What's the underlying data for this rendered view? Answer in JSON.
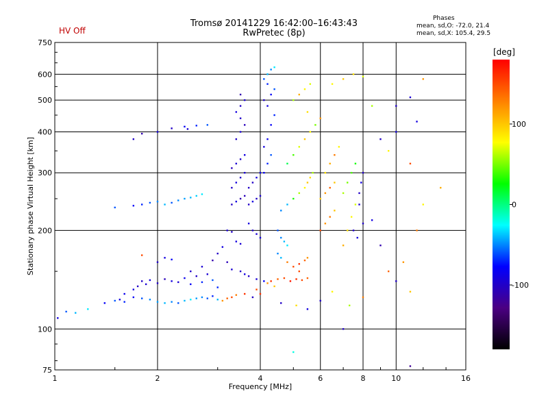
{
  "status_text": "HV Off",
  "title": "Tromsø 20141229 16:42:00–16:43:43",
  "subtitle": "RwPretec (8p)",
  "phase_stats": {
    "heading": "Phases",
    "o_line": "mean, sd,O: -72.0, 21.4",
    "x_line": "mean, sd,X: 105.4, 29.5"
  },
  "colorbar": {
    "label": "[deg]",
    "ticks": [
      {
        "value": 100,
        "label": "100"
      },
      {
        "value": 0,
        "label": "0"
      },
      {
        "value": -100,
        "label": "-100"
      }
    ],
    "range": [
      -180,
      180
    ],
    "colors": [
      "#000000",
      "#4b0082",
      "#0000ff",
      "#00ffff",
      "#00ff00",
      "#ffff00",
      "#ff8000",
      "#ff0000"
    ]
  },
  "chart_data": {
    "type": "scatter",
    "title": "Tromsø 20141229 16:42:00–16:43:43",
    "subtitle": "RwPretec (8p)",
    "xlabel": "Frequency [MHz]",
    "ylabel": "Stationary phase Virtual Height [km]",
    "xscale": "log",
    "yscale": "log",
    "xlim": [
      1,
      16
    ],
    "ylim": [
      75,
      750
    ],
    "grid": true,
    "xticks": [
      {
        "value": 1,
        "label": "1"
      },
      {
        "value": 2,
        "label": "2"
      },
      {
        "value": 4,
        "label": "4"
      },
      {
        "value": 6,
        "label": "6"
      },
      {
        "value": 8,
        "label": "8"
      },
      {
        "value": 10,
        "label": "10"
      },
      {
        "value": 16,
        "label": "16"
      }
    ],
    "yticks": [
      {
        "value": 75,
        "label": "75"
      },
      {
        "value": 100,
        "label": "100"
      },
      {
        "value": 200,
        "label": "200"
      },
      {
        "value": 300,
        "label": "300"
      },
      {
        "value": 400,
        "label": "400"
      },
      {
        "value": 500,
        "label": "500"
      },
      {
        "value": 600,
        "label": "600"
      },
      {
        "value": 750,
        "label": "750"
      }
    ],
    "color_variable": "phase [deg]",
    "points": [
      [
        1.02,
        108,
        -90
      ],
      [
        1.08,
        113,
        -60
      ],
      [
        1.15,
        112,
        -40
      ],
      [
        1.25,
        115,
        -30
      ],
      [
        1.4,
        120,
        -80
      ],
      [
        1.5,
        122,
        -60
      ],
      [
        1.55,
        123,
        -90
      ],
      [
        1.6,
        121,
        -70
      ],
      [
        1.6,
        128,
        -85
      ],
      [
        1.7,
        125,
        -80
      ],
      [
        1.8,
        124,
        -60
      ],
      [
        1.9,
        123,
        -50
      ],
      [
        2.0,
        121,
        -45
      ],
      [
        2.1,
        120,
        -40
      ],
      [
        2.2,
        121,
        -50
      ],
      [
        2.3,
        120,
        -60
      ],
      [
        2.4,
        122,
        -40
      ],
      [
        2.5,
        123,
        -30
      ],
      [
        2.6,
        124,
        -45
      ],
      [
        2.7,
        125,
        -50
      ],
      [
        2.8,
        124,
        -60
      ],
      [
        2.9,
        126,
        -70
      ],
      [
        3.0,
        123,
        -40
      ],
      [
        3.1,
        122,
        120
      ],
      [
        3.2,
        124,
        140
      ],
      [
        3.3,
        125,
        150
      ],
      [
        3.4,
        127,
        130
      ],
      [
        3.6,
        128,
        160
      ],
      [
        1.7,
        132,
        -90
      ],
      [
        1.75,
        135,
        -100
      ],
      [
        1.85,
        137,
        -95
      ],
      [
        2.0,
        138,
        -100
      ],
      [
        2.2,
        140,
        -90
      ],
      [
        2.4,
        143,
        -85
      ],
      [
        2.6,
        145,
        -100
      ],
      [
        2.8,
        147,
        -95
      ],
      [
        1.8,
        140,
        -100
      ],
      [
        1.9,
        141,
        -90
      ],
      [
        2.1,
        142,
        -105
      ],
      [
        2.3,
        139,
        -95
      ],
      [
        2.5,
        137,
        -80
      ],
      [
        2.7,
        139,
        -70
      ],
      [
        2.9,
        141,
        -60
      ],
      [
        3.0,
        134,
        -70
      ],
      [
        2.5,
        150,
        -100
      ],
      [
        2.7,
        155,
        -95
      ],
      [
        2.9,
        162,
        -110
      ],
      [
        3.0,
        170,
        -100
      ],
      [
        3.1,
        178,
        -90
      ],
      [
        3.2,
        160,
        -105
      ],
      [
        3.3,
        152,
        -95
      ],
      [
        3.5,
        150,
        -100
      ],
      [
        3.6,
        147,
        -90
      ],
      [
        3.7,
        145,
        -100
      ],
      [
        3.9,
        142,
        -95
      ],
      [
        4.1,
        140,
        -80
      ],
      [
        2.0,
        160,
        -100
      ],
      [
        2.1,
        165,
        -90
      ],
      [
        2.2,
        163,
        -80
      ],
      [
        1.8,
        168,
        150
      ],
      [
        1.5,
        235,
        -60
      ],
      [
        1.7,
        238,
        -80
      ],
      [
        1.8,
        240,
        -70
      ],
      [
        1.9,
        243,
        -60
      ],
      [
        2.0,
        245,
        -50
      ],
      [
        2.1,
        240,
        -40
      ],
      [
        2.2,
        243,
        -60
      ],
      [
        2.3,
        247,
        -50
      ],
      [
        2.4,
        250,
        -45
      ],
      [
        2.5,
        252,
        -40
      ],
      [
        2.6,
        255,
        -35
      ],
      [
        2.7,
        258,
        -30
      ],
      [
        2.0,
        400,
        -90
      ],
      [
        2.2,
        410,
        -100
      ],
      [
        2.4,
        415,
        -80
      ],
      [
        2.6,
        418,
        -70
      ],
      [
        2.8,
        420,
        -60
      ],
      [
        1.7,
        380,
        -100
      ],
      [
        1.8,
        395,
        -110
      ],
      [
        2.45,
        408,
        -95
      ],
      [
        3.3,
        240,
        -100
      ],
      [
        3.4,
        245,
        -90
      ],
      [
        3.5,
        250,
        -110
      ],
      [
        3.6,
        255,
        -105
      ],
      [
        3.3,
        270,
        -100
      ],
      [
        3.4,
        280,
        -90
      ],
      [
        3.5,
        290,
        -100
      ],
      [
        3.6,
        300,
        -95
      ],
      [
        3.3,
        310,
        -105
      ],
      [
        3.4,
        320,
        -95
      ],
      [
        3.5,
        330,
        -100
      ],
      [
        3.6,
        340,
        -90
      ],
      [
        3.4,
        380,
        -100
      ],
      [
        3.5,
        400,
        -95
      ],
      [
        3.6,
        420,
        -105
      ],
      [
        3.5,
        440,
        -100
      ],
      [
        3.4,
        460,
        -90
      ],
      [
        3.5,
        480,
        -100
      ],
      [
        3.6,
        500,
        -95
      ],
      [
        3.5,
        520,
        -110
      ],
      [
        3.7,
        240,
        -100
      ],
      [
        3.8,
        245,
        -90
      ],
      [
        3.9,
        250,
        -100
      ],
      [
        4.0,
        255,
        -95
      ],
      [
        3.7,
        270,
        -100
      ],
      [
        3.8,
        280,
        -100
      ],
      [
        3.9,
        290,
        -90
      ],
      [
        4.0,
        300,
        -85
      ],
      [
        3.7,
        210,
        -90
      ],
      [
        3.8,
        200,
        -100
      ],
      [
        3.9,
        195,
        -95
      ],
      [
        4.0,
        190,
        -90
      ],
      [
        3.2,
        200,
        -95
      ],
      [
        3.3,
        198,
        -100
      ],
      [
        3.4,
        185,
        -90
      ],
      [
        3.5,
        182,
        -95
      ],
      [
        4.1,
        300,
        -80
      ],
      [
        4.2,
        320,
        -70
      ],
      [
        4.3,
        340,
        -60
      ],
      [
        4.1,
        360,
        -90
      ],
      [
        4.2,
        380,
        -85
      ],
      [
        4.3,
        420,
        -80
      ],
      [
        4.4,
        450,
        -70
      ],
      [
        4.2,
        480,
        -90
      ],
      [
        4.1,
        500,
        -100
      ],
      [
        4.3,
        520,
        -80
      ],
      [
        4.4,
        540,
        -60
      ],
      [
        4.2,
        560,
        -70
      ],
      [
        4.1,
        580,
        -60
      ],
      [
        4.2,
        600,
        -40
      ],
      [
        4.3,
        620,
        -50
      ],
      [
        4.4,
        630,
        -30
      ],
      [
        4.5,
        200,
        -60
      ],
      [
        4.6,
        190,
        -50
      ],
      [
        4.7,
        185,
        -40
      ],
      [
        4.8,
        180,
        -30
      ],
      [
        4.5,
        170,
        -50
      ],
      [
        4.6,
        165,
        -40
      ],
      [
        4.8,
        160,
        130
      ],
      [
        5.0,
        155,
        150
      ],
      [
        5.2,
        158,
        160
      ],
      [
        5.4,
        162,
        140
      ],
      [
        5.5,
        165,
        120
      ],
      [
        5.2,
        150,
        150
      ],
      [
        4.3,
        140,
        160
      ],
      [
        4.5,
        142,
        140
      ],
      [
        4.7,
        143,
        150
      ],
      [
        4.9,
        140,
        170
      ],
      [
        5.1,
        142,
        160
      ],
      [
        5.3,
        141,
        150
      ],
      [
        5.5,
        143,
        140
      ],
      [
        4.2,
        138,
        120
      ],
      [
        4.6,
        230,
        -50
      ],
      [
        4.8,
        240,
        -40
      ],
      [
        5.0,
        250,
        30
      ],
      [
        5.2,
        260,
        60
      ],
      [
        5.4,
        270,
        80
      ],
      [
        5.5,
        280,
        100
      ],
      [
        5.6,
        290,
        90
      ],
      [
        5.7,
        300,
        60
      ],
      [
        4.8,
        320,
        10
      ],
      [
        5.0,
        340,
        40
      ],
      [
        5.2,
        360,
        70
      ],
      [
        5.4,
        380,
        100
      ],
      [
        5.6,
        400,
        80
      ],
      [
        5.8,
        420,
        50
      ],
      [
        6.0,
        440,
        120
      ],
      [
        5.5,
        460,
        90
      ],
      [
        5.0,
        500,
        60
      ],
      [
        5.2,
        520,
        110
      ],
      [
        5.4,
        540,
        80
      ],
      [
        5.6,
        560,
        70
      ],
      [
        6.0,
        250,
        100
      ],
      [
        6.2,
        260,
        120
      ],
      [
        6.4,
        270,
        140
      ],
      [
        6.6,
        280,
        100
      ],
      [
        6.2,
        300,
        90
      ],
      [
        6.4,
        320,
        110
      ],
      [
        6.6,
        340,
        130
      ],
      [
        6.8,
        360,
        80
      ],
      [
        6.0,
        200,
        150
      ],
      [
        6.2,
        210,
        120
      ],
      [
        6.4,
        220,
        130
      ],
      [
        6.6,
        230,
        100
      ],
      [
        7.0,
        180,
        110
      ],
      [
        7.2,
        200,
        90
      ],
      [
        7.4,
        220,
        80
      ],
      [
        7.6,
        240,
        70
      ],
      [
        7.0,
        260,
        60
      ],
      [
        7.2,
        280,
        50
      ],
      [
        7.4,
        300,
        40
      ],
      [
        7.6,
        320,
        30
      ],
      [
        7.8,
        260,
        -100
      ],
      [
        7.9,
        280,
        -90
      ],
      [
        8.0,
        300,
        -100
      ],
      [
        7.8,
        240,
        -95
      ],
      [
        7.5,
        200,
        -100
      ],
      [
        7.7,
        190,
        -90
      ],
      [
        8.0,
        210,
        -100
      ],
      [
        8.5,
        215,
        -90
      ],
      [
        6.5,
        560,
        80
      ],
      [
        7.0,
        580,
        100
      ],
      [
        7.5,
        600,
        90
      ],
      [
        8.0,
        590,
        70
      ],
      [
        8.5,
        480,
        60
      ],
      [
        9.0,
        380,
        -100
      ],
      [
        9.5,
        350,
        80
      ],
      [
        10.0,
        400,
        -90
      ],
      [
        10.0,
        480,
        -100
      ],
      [
        11.0,
        510,
        -95
      ],
      [
        12.0,
        580,
        120
      ],
      [
        11.5,
        430,
        -90
      ],
      [
        11.0,
        320,
        150
      ],
      [
        12.0,
        240,
        80
      ],
      [
        11.5,
        200,
        130
      ],
      [
        10.5,
        160,
        120
      ],
      [
        9.0,
        180,
        -110
      ],
      [
        9.5,
        150,
        140
      ],
      [
        10.0,
        140,
        -100
      ],
      [
        11.0,
        130,
        100
      ],
      [
        7.0,
        100,
        -100
      ],
      [
        5.0,
        85,
        -20
      ],
      [
        11.0,
        77,
        -120
      ],
      [
        13.5,
        270,
        110
      ],
      [
        3.8,
        125,
        -100
      ],
      [
        3.9,
        132,
        150
      ],
      [
        4.0,
        128,
        160
      ],
      [
        4.4,
        135,
        100
      ],
      [
        4.6,
        120,
        -100
      ],
      [
        5.1,
        118,
        90
      ],
      [
        5.5,
        115,
        -90
      ],
      [
        6.0,
        122,
        -100
      ],
      [
        6.5,
        130,
        80
      ],
      [
        7.3,
        118,
        60
      ],
      [
        8.0,
        125,
        130
      ]
    ]
  }
}
